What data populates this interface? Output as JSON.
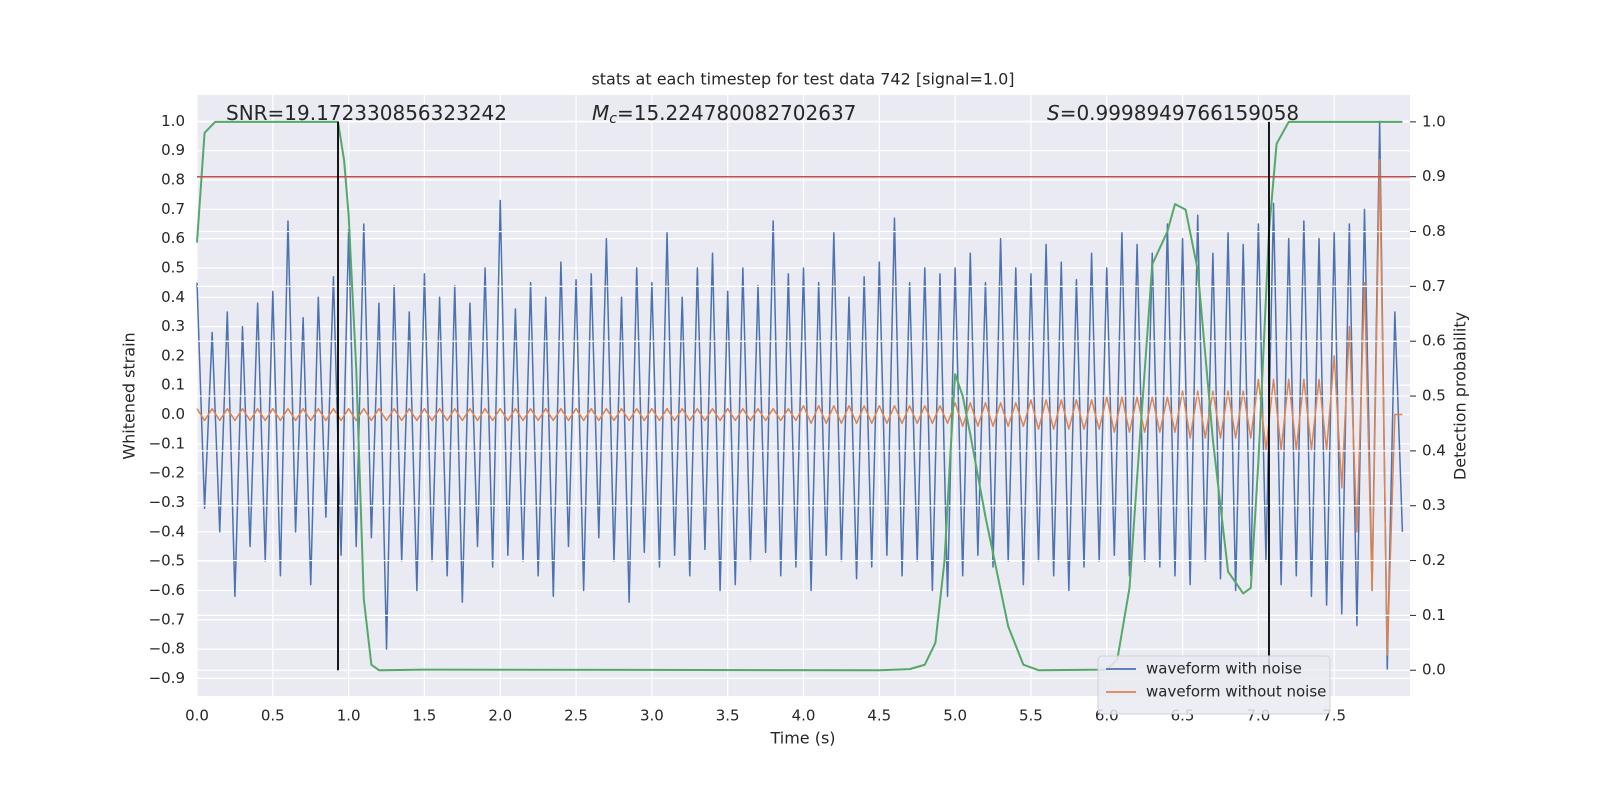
{
  "chart_data": {
    "type": "line",
    "title": "stats at each timestep for test data 742 [signal=1.0]",
    "xlabel": "Time (s)",
    "ylabel": "Whitened strain",
    "y2label": "Detection probability",
    "annotations": [
      {
        "text": "SNR=19.172330856323242"
      },
      {
        "symbol": "M",
        "subscript": "c",
        "text": "=15.224780082702637"
      },
      {
        "symbol": "S",
        "text": "=0.9998949766159058"
      }
    ],
    "xlim": [
      0,
      8.0
    ],
    "ylim": [
      -0.96,
      1.09
    ],
    "y2lim": [
      -0.047,
      1.049
    ],
    "grid": true,
    "legend": "lower right",
    "xticks": [
      {
        "value": 0,
        "label": "0.0"
      },
      0.5,
      {
        "value": 1,
        "label": "1.0"
      },
      1.5,
      {
        "value": 2,
        "label": "2.0"
      },
      2.5,
      {
        "value": 3,
        "label": "3.0"
      },
      3.5,
      {
        "value": 4,
        "label": "4.0"
      },
      4.5,
      {
        "value": 5,
        "label": "5.0"
      },
      5.5,
      {
        "value": 6,
        "label": "6.0"
      },
      6.5,
      {
        "value": 7,
        "label": "7.0"
      },
      7.5
    ],
    "yticks": [
      {
        "value": -0.9,
        "label": "−0.9"
      },
      {
        "value": -0.8,
        "label": "−0.8"
      },
      {
        "value": -0.7,
        "label": "−0.7"
      },
      {
        "value": -0.6,
        "label": "−0.6"
      },
      {
        "value": -0.5,
        "label": "−0.5"
      },
      {
        "value": -0.4,
        "label": "−0.4"
      },
      {
        "value": -0.3,
        "label": "−0.3"
      },
      {
        "value": -0.2,
        "label": "−0.2"
      },
      {
        "value": -0.1,
        "label": "−0.1"
      },
      {
        "value": 0,
        "label": "0.0"
      },
      0.1,
      0.2,
      0.3,
      0.4,
      0.5,
      0.6,
      0.7,
      0.8,
      0.9,
      {
        "value": 1,
        "label": "1.0"
      }
    ],
    "y2ticks": [
      {
        "value": 0,
        "label": "0.0"
      },
      0.1,
      0.2,
      0.3,
      0.4,
      0.5,
      0.6,
      0.7,
      0.8,
      0.9,
      {
        "value": 1,
        "label": "1.0"
      }
    ],
    "x": [
      0,
      0.05,
      0.1,
      0.15,
      0.2,
      0.25,
      0.3,
      0.35,
      0.4,
      0.45,
      0.5,
      0.55,
      0.6,
      0.65,
      0.7,
      0.75,
      0.8,
      0.85,
      0.9,
      0.95,
      1,
      1.05,
      1.1,
      1.15,
      1.2,
      1.25,
      1.3,
      1.35,
      1.4,
      1.45,
      1.5,
      1.55,
      1.6,
      1.65,
      1.7,
      1.75,
      1.8,
      1.85,
      1.9,
      1.95,
      2,
      2.05,
      2.1,
      2.15,
      2.2,
      2.25,
      2.3,
      2.35,
      2.4,
      2.45,
      2.5,
      2.55,
      2.6,
      2.65,
      2.7,
      2.75,
      2.8,
      2.85,
      2.9,
      2.95,
      3,
      3.05,
      3.1,
      3.15,
      3.2,
      3.25,
      3.3,
      3.35,
      3.4,
      3.45,
      3.5,
      3.55,
      3.6,
      3.65,
      3.7,
      3.75,
      3.8,
      3.85,
      3.9,
      3.95,
      4,
      4.05,
      4.1,
      4.15,
      4.2,
      4.25,
      4.3,
      4.35,
      4.4,
      4.45,
      4.5,
      4.55,
      4.6,
      4.65,
      4.7,
      4.75,
      4.8,
      4.85,
      4.9,
      4.95,
      5,
      5.05,
      5.1,
      5.15,
      5.2,
      5.25,
      5.3,
      5.35,
      5.4,
      5.45,
      5.5,
      5.55,
      5.6,
      5.65,
      5.7,
      5.75,
      5.8,
      5.85,
      5.9,
      5.95,
      6,
      6.05,
      6.1,
      6.15,
      6.2,
      6.25,
      6.3,
      6.35,
      6.4,
      6.45,
      6.5,
      6.55,
      6.6,
      6.65,
      6.7,
      6.75,
      6.8,
      6.85,
      6.9,
      6.95,
      7,
      7.05,
      7.1,
      7.15,
      7.2,
      7.25,
      7.3,
      7.35,
      7.4,
      7.45,
      7.5,
      7.55,
      7.6,
      7.65,
      7.7,
      7.75,
      7.8,
      7.85,
      7.9,
      7.95
    ],
    "series": [
      {
        "name": "waveform with noise",
        "color": "#4c72b0",
        "values": [
          0.45,
          -0.32,
          0.28,
          -0.4,
          0.35,
          -0.62,
          0.3,
          -0.45,
          0.38,
          -0.5,
          0.42,
          -0.55,
          0.66,
          -0.4,
          0.33,
          -0.58,
          0.4,
          -0.35,
          0.47,
          -0.48,
          0.63,
          -0.45,
          0.65,
          -0.42,
          0.38,
          -0.8,
          0.44,
          -0.5,
          0.35,
          -0.6,
          0.48,
          -0.5,
          0.4,
          -0.55,
          0.44,
          -0.64,
          0.38,
          -0.45,
          0.5,
          -0.52,
          0.73,
          -0.48,
          0.36,
          -0.5,
          0.45,
          -0.55,
          0.4,
          -0.62,
          0.52,
          -0.45,
          0.46,
          -0.6,
          0.48,
          -0.42,
          0.6,
          -0.5,
          0.4,
          -0.64,
          0.5,
          -0.47,
          0.45,
          -0.52,
          0.62,
          -0.48,
          0.4,
          -0.55,
          0.5,
          -0.46,
          0.55,
          -0.6,
          0.42,
          -0.58,
          0.5,
          -0.5,
          0.44,
          -0.47,
          0.66,
          -0.55,
          0.48,
          -0.52,
          0.5,
          -0.6,
          0.45,
          -0.48,
          0.62,
          -0.5,
          0.4,
          -0.56,
          0.47,
          -0.52,
          0.52,
          -0.48,
          0.67,
          -0.55,
          0.45,
          -0.5,
          0.5,
          -0.6,
          0.48,
          -0.62,
          0.5,
          -0.55,
          0.55,
          -0.48,
          0.45,
          -0.52,
          0.6,
          -0.5,
          0.5,
          -0.58,
          0.48,
          -0.5,
          0.58,
          -0.55,
          0.52,
          -0.6,
          0.46,
          -0.52,
          0.55,
          -0.5,
          0.5,
          -0.48,
          0.62,
          -0.55,
          0.58,
          -0.5,
          0.55,
          -0.52,
          0.65,
          -0.55,
          0.6,
          -0.58,
          0.68,
          -0.5,
          0.55,
          -0.56,
          0.62,
          -0.6,
          0.58,
          -0.55,
          0.65,
          -0.5,
          0.72,
          -0.58,
          0.6,
          -0.55,
          0.66,
          -0.62,
          0.6,
          -0.65,
          0.62,
          -0.68,
          0.65,
          -0.72,
          0.7,
          -0.6,
          1.0,
          -0.87,
          0.35,
          -0.4
        ]
      },
      {
        "name": "waveform without noise",
        "color": "#dd8452",
        "values": [
          0.02,
          -0.02,
          0.02,
          -0.02,
          0.02,
          -0.02,
          0.02,
          -0.02,
          0.02,
          -0.02,
          0.02,
          -0.02,
          0.02,
          -0.02,
          0.02,
          -0.02,
          0.02,
          -0.02,
          0.02,
          -0.02,
          0.02,
          -0.02,
          0.02,
          -0.02,
          0.02,
          -0.02,
          0.02,
          -0.02,
          0.02,
          -0.02,
          0.02,
          -0.02,
          0.02,
          -0.02,
          0.02,
          -0.02,
          0.02,
          -0.02,
          0.02,
          -0.02,
          0.02,
          -0.02,
          0.02,
          -0.02,
          0.02,
          -0.02,
          0.02,
          -0.02,
          0.02,
          -0.02,
          0.02,
          -0.02,
          0.02,
          -0.02,
          0.02,
          -0.02,
          0.02,
          -0.02,
          0.02,
          -0.02,
          0.02,
          -0.02,
          0.02,
          -0.02,
          0.02,
          -0.02,
          0.02,
          -0.02,
          0.02,
          -0.02,
          0.02,
          -0.02,
          0.02,
          -0.02,
          0.02,
          -0.02,
          0.02,
          -0.02,
          0.02,
          -0.02,
          0.03,
          -0.03,
          0.03,
          -0.03,
          0.03,
          -0.03,
          0.03,
          -0.03,
          0.03,
          -0.03,
          0.03,
          -0.03,
          0.03,
          -0.03,
          0.03,
          -0.03,
          0.03,
          -0.03,
          0.03,
          -0.03,
          0.04,
          -0.04,
          0.04,
          -0.04,
          0.04,
          -0.04,
          0.04,
          -0.04,
          0.04,
          -0.04,
          0.05,
          -0.05,
          0.05,
          -0.05,
          0.05,
          -0.05,
          0.05,
          -0.05,
          0.05,
          -0.05,
          0.06,
          -0.06,
          0.06,
          -0.06,
          0.06,
          -0.06,
          0.06,
          -0.06,
          0.06,
          -0.06,
          0.08,
          -0.08,
          0.08,
          -0.08,
          0.08,
          -0.08,
          0.08,
          -0.08,
          0.08,
          -0.08,
          0.12,
          -0.12,
          0.12,
          -0.12,
          0.12,
          -0.12,
          0.12,
          -0.12,
          0.12,
          -0.12,
          0.2,
          -0.25,
          0.3,
          -0.4,
          0.45,
          -0.6,
          0.87,
          -0.82,
          0,
          0
        ]
      },
      {
        "color": "#55a868",
        "axis": "y2",
        "x": [
          0,
          0.05,
          0.12,
          0.5,
          0.93,
          0.97,
          1.0,
          1.05,
          1.1,
          1.15,
          1.2,
          1.5,
          4.5,
          4.7,
          4.8,
          4.87,
          4.93,
          4.97,
          5.0,
          5.05,
          5.1,
          5.2,
          5.35,
          5.45,
          5.55,
          6.0,
          6.07,
          6.15,
          6.2,
          6.3,
          6.4,
          6.45,
          6.52,
          6.6,
          6.7,
          6.8,
          6.9,
          6.95,
          7.0,
          7.07,
          7.12,
          7.2,
          7.95
        ],
        "values": [
          0.78,
          0.98,
          1.0,
          1.0,
          1.0,
          0.93,
          0.83,
          0.55,
          0.13,
          0.01,
          0.0,
          0.001,
          0.0,
          0.002,
          0.01,
          0.05,
          0.2,
          0.4,
          0.54,
          0.5,
          0.43,
          0.28,
          0.08,
          0.01,
          0.0,
          0.001,
          0.02,
          0.15,
          0.35,
          0.74,
          0.8,
          0.85,
          0.84,
          0.73,
          0.42,
          0.18,
          0.14,
          0.15,
          0.38,
          0.8,
          0.96,
          1.0,
          1.0
        ]
      }
    ],
    "hlines": [
      {
        "y": 0.9,
        "axis": "y2",
        "color": "#c44e52"
      }
    ],
    "vlines": [
      {
        "x": 0.93,
        "ymin": 0,
        "ymax": 1,
        "axis": "y2",
        "color": "#000000"
      },
      {
        "x": 7.07,
        "ymin": 0,
        "ymax": 1,
        "axis": "y2",
        "color": "#000000"
      }
    ]
  }
}
